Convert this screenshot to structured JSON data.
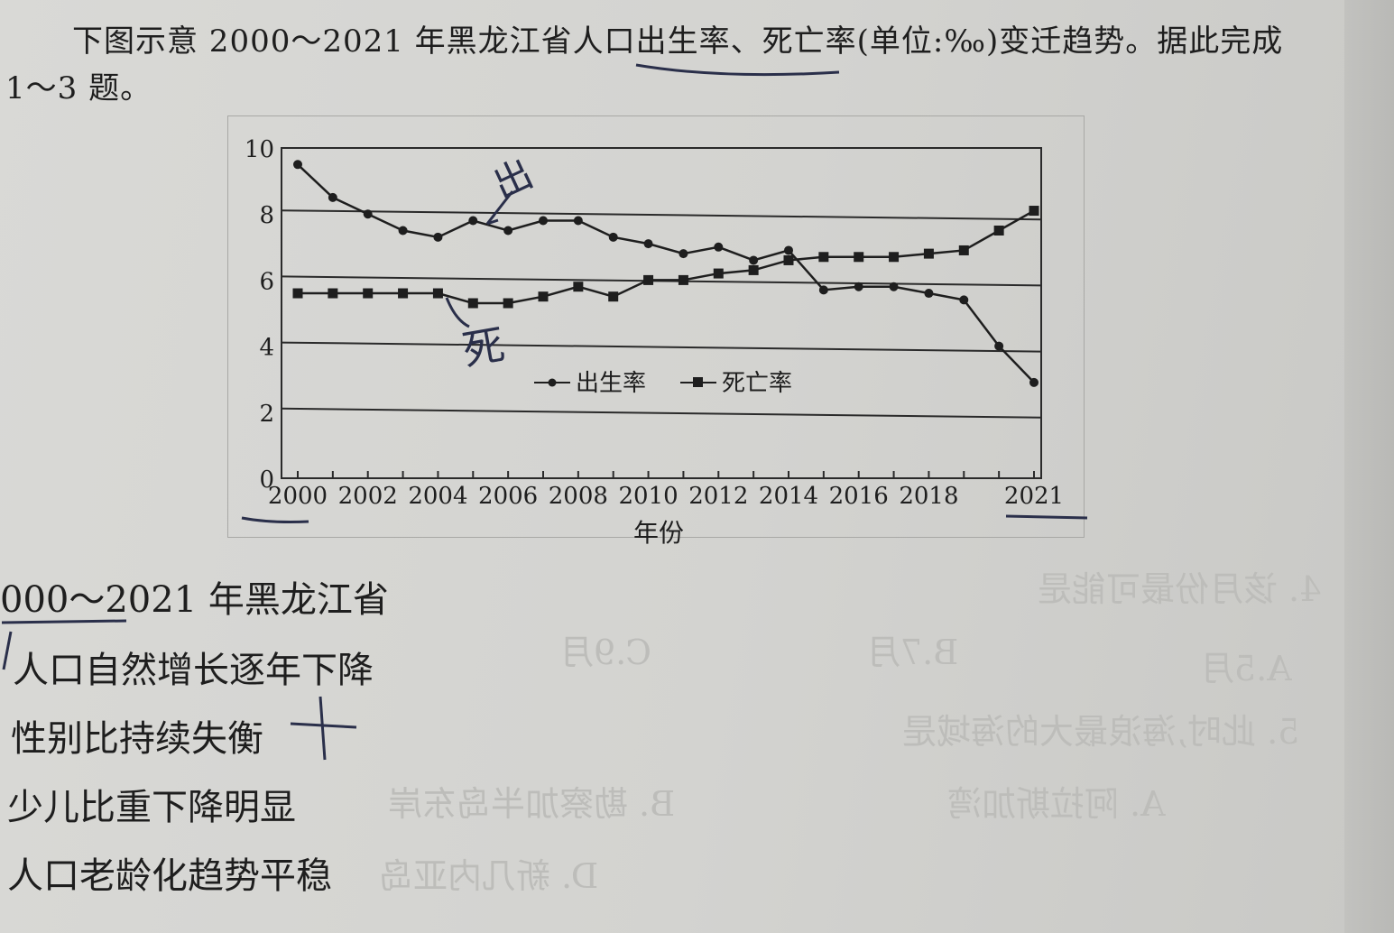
{
  "intro": {
    "line1": "下图示意 2000～2021 年黑龙江省人口出生率、死亡率(单位:‰)变迁趋势。据此完成",
    "line2": "1～3 题。"
  },
  "question": {
    "stem": "000～2021 年黑龙江省",
    "options": [
      "人口自然增长逐年下降",
      "性别比持续失衡",
      "少儿比重下降明显",
      "人口老龄化趋势平稳"
    ]
  },
  "chart_data": {
    "type": "line",
    "x": [
      2000,
      2001,
      2002,
      2003,
      2004,
      2005,
      2006,
      2007,
      2008,
      2009,
      2010,
      2011,
      2012,
      2013,
      2014,
      2015,
      2016,
      2017,
      2018,
      2019,
      2020,
      2021
    ],
    "x_tick_labels": [
      "2000",
      "2002",
      "2004",
      "2006",
      "2008",
      "2010",
      "2012",
      "2014",
      "2016",
      "2018",
      "2021"
    ],
    "xlabel": "年份",
    "ylabel": "",
    "ylim": [
      0,
      10
    ],
    "y_ticks": [
      "0",
      "2",
      "4",
      "6",
      "8",
      "10"
    ],
    "grid": "horizontal",
    "legend_position": "inside-middle",
    "series": [
      {
        "name": "出生率",
        "marker": "circle",
        "values": [
          9.5,
          8.5,
          8.0,
          7.5,
          7.3,
          7.8,
          7.5,
          7.8,
          7.8,
          7.3,
          7.1,
          6.8,
          7.0,
          6.6,
          6.9,
          5.7,
          5.8,
          5.8,
          5.6,
          5.4,
          4.0,
          2.9
        ]
      },
      {
        "name": "死亡率",
        "marker": "square",
        "values": [
          5.6,
          5.6,
          5.6,
          5.6,
          5.6,
          5.3,
          5.3,
          5.5,
          5.8,
          5.5,
          6.0,
          6.0,
          6.2,
          6.3,
          6.6,
          6.7,
          6.7,
          6.7,
          6.8,
          6.9,
          7.5,
          8.1
        ]
      }
    ]
  },
  "handwriting": {
    "birth_note": "出",
    "death_note": "死"
  },
  "ghost_text": {
    "g1": "4. 该月份最可能是",
    "g2": "C.9月",
    "g3": "B.7月",
    "g4": "A.5月",
    "g5": "5. 此时,海浪最大的海域是",
    "g6": "A. 阿拉斯加湾",
    "g7": "B. 勘察加半岛东岸",
    "g8": "D. 新几内亚岛"
  },
  "colors": {
    "ink": "#1e1e1e",
    "handwriting": "#2a2f4a",
    "grid": "#2a2a2a"
  }
}
